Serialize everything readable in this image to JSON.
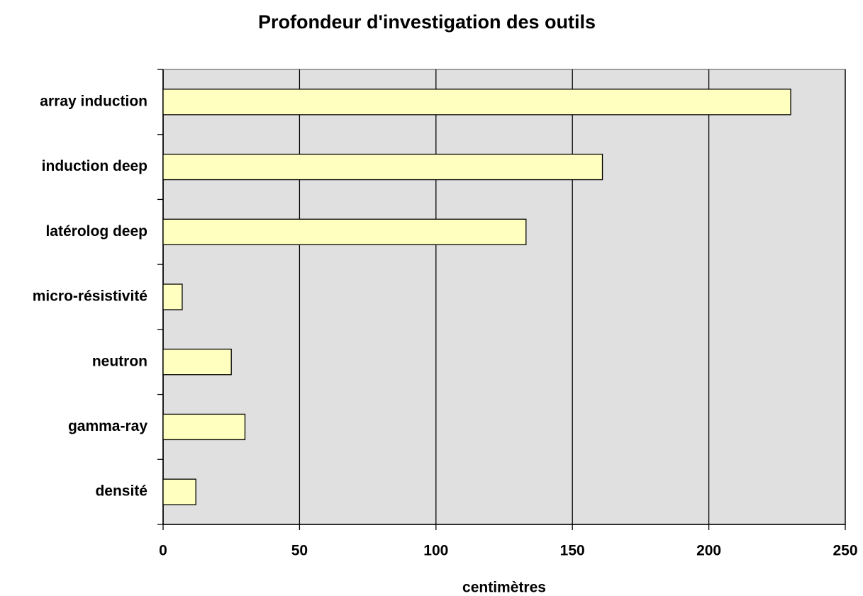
{
  "chart_data": {
    "type": "barh",
    "title": "Profondeur d'investigation des outils",
    "xlabel": "centimètres",
    "categories": [
      "array induction",
      "induction deep",
      "latérolog deep",
      "micro-résistivité",
      "neutron",
      "gamma-ray",
      "densité"
    ],
    "values": [
      230,
      161,
      133,
      7,
      25,
      30,
      12
    ],
    "color": "#ffffc0",
    "xlim": [
      0,
      250
    ],
    "xticks": [
      0,
      50,
      100,
      150,
      200,
      250
    ],
    "grid": true
  }
}
